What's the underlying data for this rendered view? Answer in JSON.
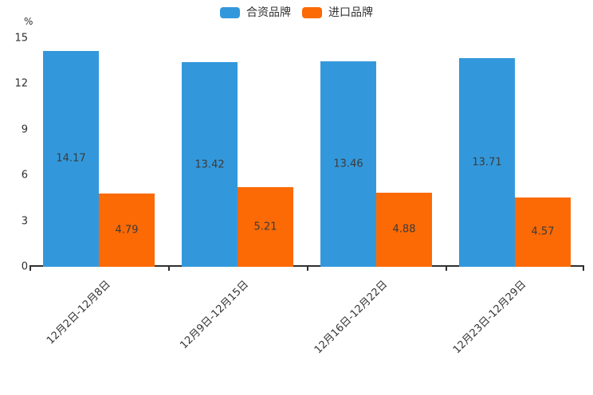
{
  "chart_data": {
    "type": "bar",
    "title": "",
    "categories": [
      "12月2日-12月8日",
      "12月9日-12月15日",
      "12月16日-12月22日",
      "12月23日-12月29日"
    ],
    "series": [
      {
        "name": "合资品牌",
        "color": "#3398db",
        "values": [
          14.17,
          13.42,
          13.46,
          13.71
        ]
      },
      {
        "name": "进口品牌",
        "color": "#fb6a05",
        "values": [
          4.79,
          5.21,
          4.88,
          4.57
        ]
      }
    ],
    "xlabel": "",
    "ylabel": "%",
    "ylim": [
      0,
      15
    ],
    "yticks": [
      0,
      3,
      6,
      9,
      12,
      15
    ],
    "grid": false,
    "legend_position": "top-center",
    "bar_labels_shown": true,
    "bar_label_color": "#3b3b3b",
    "axis_color": "#2f2f2f",
    "x_label_rotation_deg": 45
  }
}
